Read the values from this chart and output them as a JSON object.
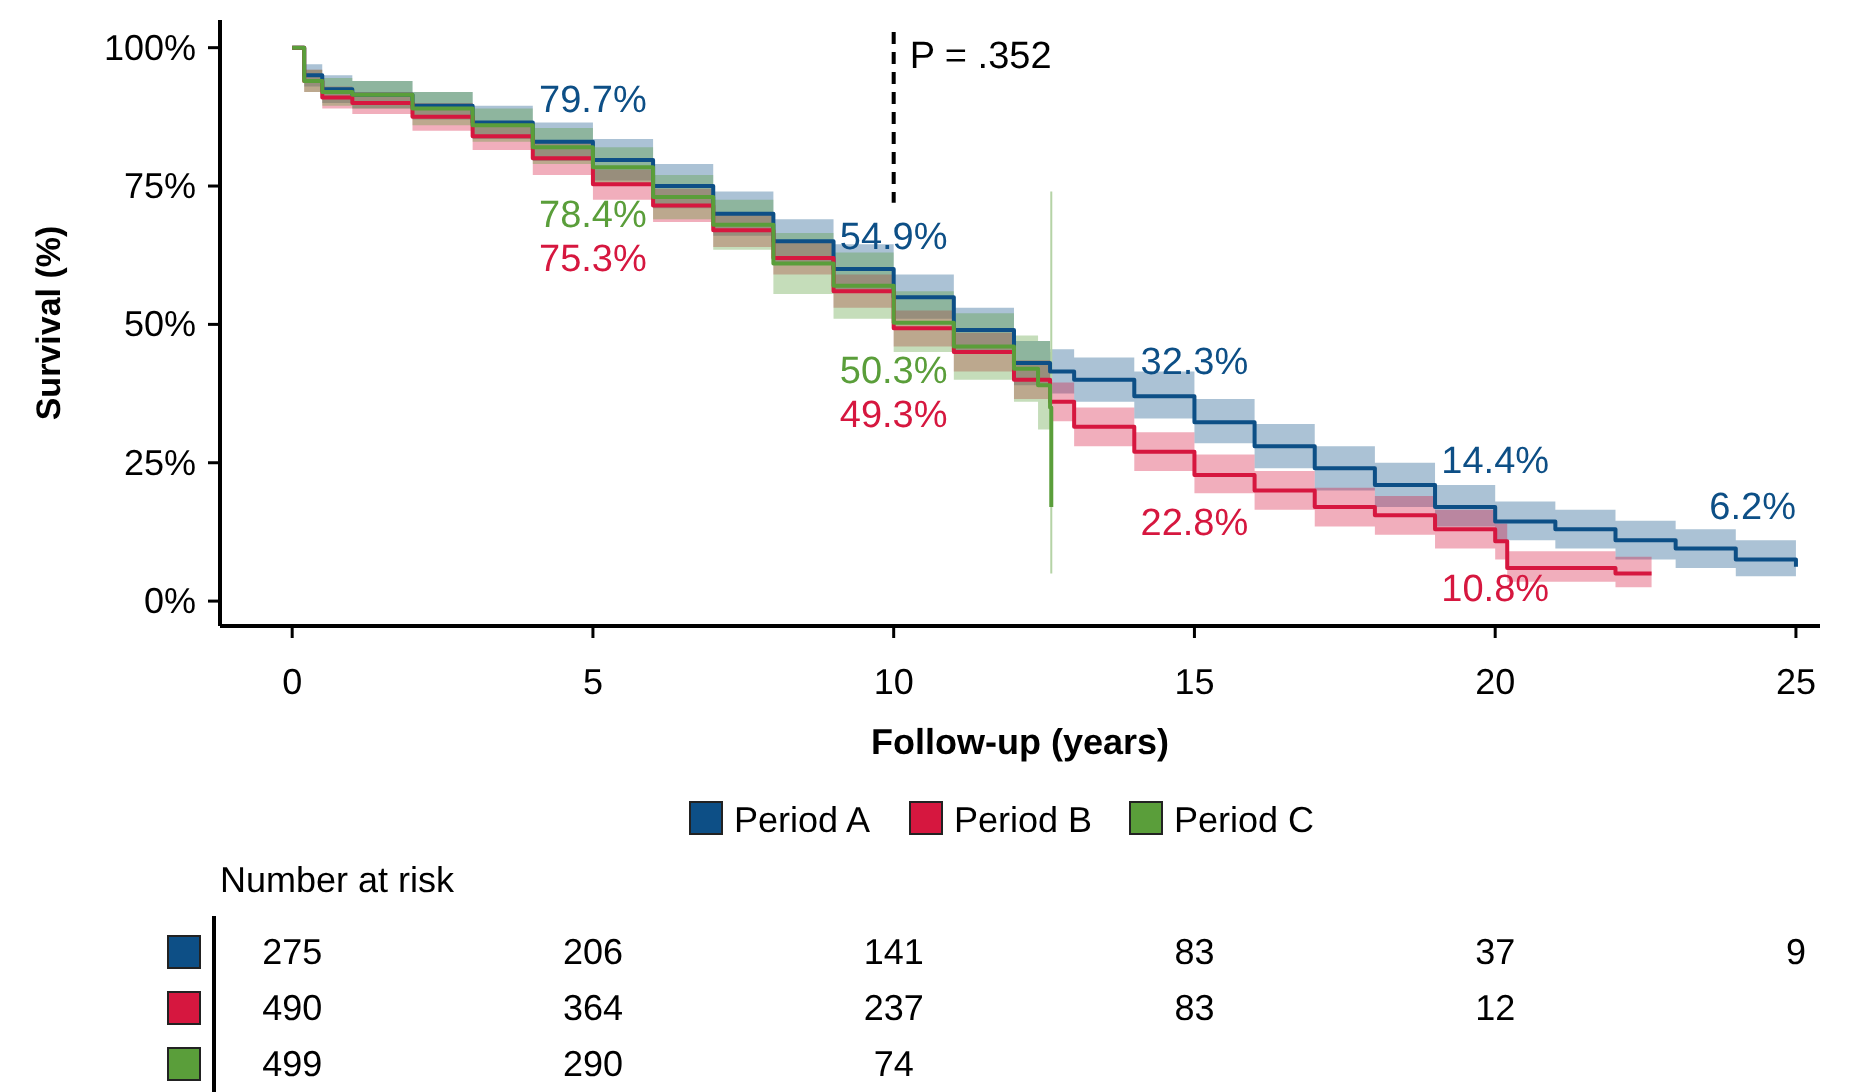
{
  "chart_data": {
    "type": "step",
    "xlabel": "Follow-up (years)",
    "ylabel": "Survival (%)",
    "xlim": [
      -1.2,
      25.4
    ],
    "xticks": [
      0,
      5,
      10,
      15,
      20,
      25
    ],
    "ylim": [
      -4.5,
      105
    ],
    "yticks": [
      {
        "value": 0,
        "label": "0%"
      },
      {
        "value": 25,
        "label": "25%"
      },
      {
        "value": 50,
        "label": "50%"
      },
      {
        "value": 75,
        "label": "75%"
      },
      {
        "value": 100,
        "label": "100%"
      }
    ],
    "legend": "bottom",
    "line_style": "solid",
    "series": [
      {
        "name": "Period A",
        "color": "#0d4f86",
        "x": [
          0,
          0.2,
          0.5,
          1,
          2,
          3,
          4,
          5,
          6,
          7,
          8,
          9,
          10,
          11,
          12,
          12.6,
          13,
          14,
          15,
          16,
          17,
          18,
          19,
          20,
          21,
          22,
          23,
          24,
          25
        ],
        "values": [
          100,
          95,
          92.5,
          91.5,
          89.5,
          86.5,
          83,
          79.7,
          75,
          70,
          65,
          60,
          54.9,
          49,
          43,
          41.5,
          40,
          37,
          32.3,
          28,
          24,
          21,
          17,
          14.4,
          13,
          11,
          9.5,
          7.5,
          6.2
        ],
        "lower": [
          100,
          93,
          90,
          89,
          87,
          83.5,
          79.5,
          76,
          71,
          66,
          61,
          56,
          51,
          45,
          39,
          37.5,
          36,
          33,
          28.5,
          24,
          20,
          17,
          13.5,
          11,
          9.5,
          7.5,
          6,
          4.5,
          3.5
        ],
        "upper": [
          100,
          97,
          95,
          94,
          92,
          89.5,
          86.5,
          83.5,
          79,
          74,
          69,
          64.5,
          59,
          53,
          47,
          45.5,
          44,
          41.5,
          36.5,
          32,
          28,
          25,
          21,
          18,
          16.5,
          14.5,
          13,
          11,
          9.5
        ]
      },
      {
        "name": "Period B",
        "color": "#d6173f",
        "x": [
          0,
          0.2,
          0.5,
          1,
          2,
          3,
          4,
          5,
          6,
          7,
          8,
          9,
          10,
          11,
          12,
          12.6,
          13,
          14,
          15,
          16,
          17,
          18,
          19,
          20,
          20.2,
          21.8,
          22,
          22.6
        ],
        "values": [
          100,
          94,
          91,
          90,
          87.5,
          84,
          80,
          75.3,
          71.5,
          67,
          62,
          56,
          49.3,
          45,
          40,
          36,
          31.5,
          27,
          22.8,
          20,
          17,
          15.5,
          13,
          10.8,
          6,
          6,
          5,
          5
        ],
        "lower": [
          100,
          92,
          89,
          88,
          85,
          81.5,
          77,
          72.5,
          68.5,
          64,
          59,
          53,
          46,
          41.5,
          36.5,
          32.5,
          28,
          23.5,
          19.5,
          16.5,
          13.5,
          12,
          9.5,
          7.5,
          3.5,
          3.5,
          2.5,
          2.5
        ],
        "upper": [
          100,
          96,
          93,
          92,
          90,
          86.5,
          83,
          78,
          74.5,
          70,
          65,
          59,
          52.5,
          48.5,
          43.5,
          39.5,
          35,
          30.5,
          26.5,
          23.5,
          20.5,
          19,
          16.5,
          14,
          9,
          9,
          8,
          8
        ]
      },
      {
        "name": "Period C",
        "color": "#5a9e3a",
        "x": [
          0,
          0.2,
          0.5,
          1,
          2,
          3,
          4,
          5,
          6,
          7,
          8,
          9,
          10,
          11,
          12,
          12.4,
          12.6,
          12.62
        ],
        "values": [
          100,
          94,
          92,
          91.5,
          89,
          86,
          82,
          78.4,
          73,
          68,
          61,
          57,
          50.3,
          46,
          42,
          39,
          35,
          17
        ],
        "lower": [
          100,
          92,
          89.5,
          89,
          86,
          83,
          79,
          75,
          69,
          63.5,
          55.5,
          51,
          45,
          40,
          36,
          31,
          26,
          26
        ],
        "upper": [
          100,
          96,
          94.5,
          94,
          92,
          89,
          85.5,
          82,
          77,
          72.5,
          66.5,
          63,
          56,
          52,
          48,
          47,
          45,
          45
        ]
      }
    ],
    "ref_lines": [
      {
        "axis": "x",
        "value": 10,
        "label": "P = .352",
        "line_style": "dashed",
        "color": "#000000"
      },
      {
        "axis": "x",
        "value": 12.62,
        "color": "#b5d3a6",
        "line_style": "solid"
      }
    ],
    "annotations": [
      {
        "text": "79.7%",
        "x": 5,
        "y": 79.7
      },
      {
        "text": "78.4%",
        "x": 5,
        "y": 78.4
      },
      {
        "text": "75.3%",
        "x": 5,
        "y": 75.3
      },
      {
        "text": "54.9%",
        "x": 10,
        "y": 54.9
      },
      {
        "text": "50.3%",
        "x": 10,
        "y": 50.3
      },
      {
        "text": "49.3%",
        "x": 10,
        "y": 49.3
      },
      {
        "text": "32.3%",
        "x": 15,
        "y": 32.3
      },
      {
        "text": "22.8%",
        "x": 15,
        "y": 22.8
      },
      {
        "text": "14.4%",
        "x": 20,
        "y": 14.4
      },
      {
        "text": "10.8%",
        "x": 20,
        "y": 10.8
      },
      {
        "text": "6.2%",
        "x": 25,
        "y": 6.2
      },
      "Number at risk",
      "275 206 141 83 37 9",
      "490 364 237 83 12",
      "499 290 74"
    ]
  }
}
